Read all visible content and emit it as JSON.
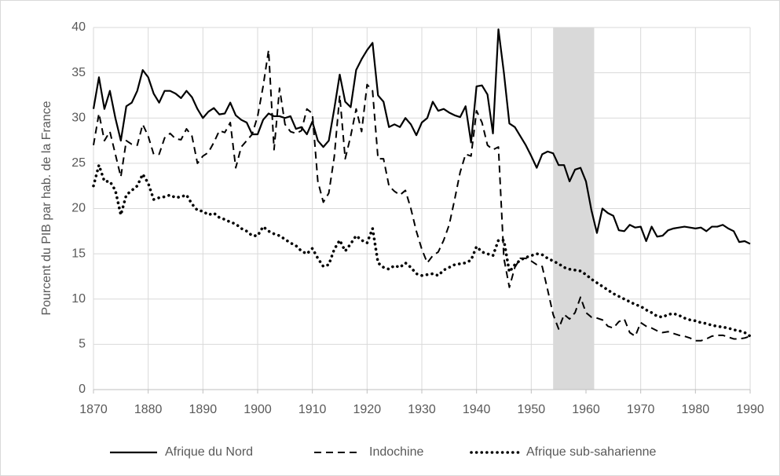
{
  "chart_data": {
    "type": "line",
    "y_label": "Pourcent du PIB par hab. de la France",
    "x": [
      1870,
      1871,
      1872,
      1873,
      1874,
      1875,
      1876,
      1877,
      1878,
      1879,
      1880,
      1881,
      1882,
      1883,
      1884,
      1885,
      1886,
      1887,
      1888,
      1889,
      1890,
      1891,
      1892,
      1893,
      1894,
      1895,
      1896,
      1897,
      1898,
      1899,
      1900,
      1901,
      1902,
      1903,
      1904,
      1905,
      1906,
      1907,
      1908,
      1909,
      1910,
      1911,
      1912,
      1913,
      1914,
      1915,
      1916,
      1917,
      1918,
      1919,
      1920,
      1921,
      1922,
      1923,
      1924,
      1925,
      1926,
      1927,
      1928,
      1929,
      1930,
      1931,
      1932,
      1933,
      1934,
      1935,
      1936,
      1937,
      1938,
      1939,
      1940,
      1941,
      1942,
      1943,
      1944,
      1945,
      1946,
      1947,
      1948,
      1949,
      1950,
      1951,
      1952,
      1953,
      1954,
      1955,
      1956,
      1957,
      1958,
      1959,
      1960,
      1961,
      1962,
      1963,
      1964,
      1965,
      1966,
      1967,
      1968,
      1969,
      1970,
      1971,
      1972,
      1973,
      1974,
      1975,
      1976,
      1977,
      1978,
      1979,
      1980,
      1981,
      1982,
      1983,
      1984,
      1985,
      1986,
      1987,
      1988,
      1989,
      1990
    ],
    "series": [
      {
        "name": "Afrique du Nord",
        "color": "#000000",
        "style": "solid",
        "values": [
          31,
          34.5,
          31,
          33,
          30,
          27.5,
          31.3,
          31.7,
          33,
          35.3,
          34.5,
          32.7,
          31.7,
          33,
          33,
          32.7,
          32.2,
          33,
          32.3,
          31,
          30,
          30.7,
          31.1,
          30.4,
          30.5,
          31.7,
          30.3,
          29.8,
          29.5,
          28.2,
          28.2,
          29.8,
          30.5,
          30.2,
          30.2,
          30,
          30.2,
          28.8,
          29,
          28.2,
          29.6,
          27.5,
          26.8,
          27.5,
          31,
          34.8,
          31.8,
          31.2,
          35.3,
          36.5,
          37.5,
          38.3,
          32.5,
          31.8,
          29,
          29.3,
          29,
          30,
          29.3,
          28.1,
          29.5,
          30,
          31.8,
          30.8,
          31,
          30.6,
          30.3,
          30.1,
          31.3,
          27.3,
          33.5,
          33.6,
          32.6,
          28.3,
          39.8,
          35,
          29.4,
          29,
          28,
          27,
          25.8,
          24.5,
          26,
          26.3,
          26.1,
          24.8,
          24.8,
          23,
          24.3,
          24.5,
          23,
          19.8,
          17.3,
          20,
          19.5,
          19.2,
          17.6,
          17.5,
          18.2,
          17.9,
          18,
          16.4,
          18,
          16.9,
          17,
          17.6,
          17.8,
          17.9,
          18,
          17.9,
          17.8,
          17.9,
          17.5,
          18,
          18,
          18.2,
          17.8,
          17.5,
          16.3,
          16.4,
          16.1
        ]
      },
      {
        "name": "Indochine",
        "color": "#000000",
        "style": "dashed",
        "values": [
          27,
          30.5,
          27.5,
          28.5,
          26,
          23.5,
          27.5,
          27.1,
          27,
          29.3,
          28,
          26,
          26,
          27.8,
          28.3,
          27.7,
          27.6,
          28.8,
          28,
          25,
          25.8,
          26.2,
          27.3,
          28.6,
          28.4,
          29.5,
          24.5,
          26.8,
          27.5,
          28.2,
          30.2,
          33.5,
          37.5,
          26.5,
          33.3,
          29.3,
          28.5,
          28.3,
          28.6,
          31,
          30.5,
          23,
          20.7,
          21.7,
          25.7,
          32.5,
          25.5,
          28,
          31,
          28.5,
          33.7,
          33,
          25.5,
          25.5,
          22.5,
          21.9,
          21.5,
          22,
          20,
          17.5,
          15.5,
          14,
          14.8,
          15.2,
          16.5,
          18.2,
          21,
          24,
          26,
          25.8,
          30.8,
          29.5,
          27,
          26.5,
          26.8,
          14.5,
          11.3,
          13.5,
          14.5,
          14.5,
          14.2,
          13.8,
          13.6,
          11,
          8.3,
          6.7,
          8.3,
          7.8,
          8.5,
          10.2,
          8.5,
          8,
          7.9,
          7.7,
          7,
          6.8,
          7.5,
          7.8,
          6.3,
          5.9,
          7.4,
          7,
          6.8,
          6.5,
          6.3,
          6.4,
          6.2,
          6,
          5.9,
          5.7,
          5.4,
          5.4,
          5.6,
          5.9,
          6,
          6,
          5.8,
          5.6,
          5.6,
          5.7,
          5.9
        ]
      },
      {
        "name": "Afrique sub-saharienne",
        "color": "#000000",
        "style": "dotted",
        "values": [
          22.5,
          24.8,
          23,
          23,
          22,
          19.3,
          21.5,
          22,
          22.5,
          23.8,
          22.8,
          21,
          21.2,
          21.3,
          21.5,
          21.2,
          21.3,
          21.5,
          20.5,
          19.8,
          19.7,
          19.3,
          19.5,
          19,
          18.8,
          18.5,
          18.3,
          17.8,
          17.5,
          17,
          17,
          18,
          17.5,
          17.2,
          17,
          16.6,
          16.2,
          15.9,
          15.3,
          15,
          15.6,
          14.5,
          13.6,
          13.8,
          15.5,
          16.5,
          15.3,
          16.1,
          17,
          16.5,
          16.2,
          17.8,
          14,
          13.5,
          13.3,
          13.7,
          13.5,
          14,
          13.5,
          12.8,
          12.6,
          12.7,
          12.8,
          12.6,
          13.2,
          13.5,
          13.8,
          13.9,
          14,
          14.3,
          15.8,
          15.2,
          15,
          14.8,
          16.5,
          16.5,
          13,
          13.8,
          14.3,
          14.6,
          14.8,
          15,
          14.9,
          14.5,
          14.2,
          13.9,
          13.5,
          13.3,
          13.2,
          13.1,
          12.7,
          12.2,
          11.8,
          11.4,
          11,
          10.6,
          10.3,
          10,
          9.7,
          9.4,
          9.2,
          8.8,
          8.5,
          8.1,
          8,
          8.3,
          8.4,
          8.2,
          7.9,
          7.7,
          7.6,
          7.4,
          7.3,
          7.1,
          7,
          6.9,
          6.8,
          6.6,
          6.5,
          6.3,
          5.9
        ]
      }
    ],
    "shaded_span": [
      1954,
      1961.5
    ],
    "shade_color": "#d9d9d9",
    "xlim": [
      1870,
      1990
    ],
    "xticks": [
      1870,
      1880,
      1890,
      1900,
      1910,
      1920,
      1930,
      1940,
      1950,
      1960,
      1970,
      1980,
      1990
    ],
    "ylim": [
      0,
      40
    ],
    "yticks": [
      0,
      5,
      10,
      15,
      20,
      25,
      30,
      35,
      40
    ],
    "grid": true,
    "legend": "bottom"
  }
}
